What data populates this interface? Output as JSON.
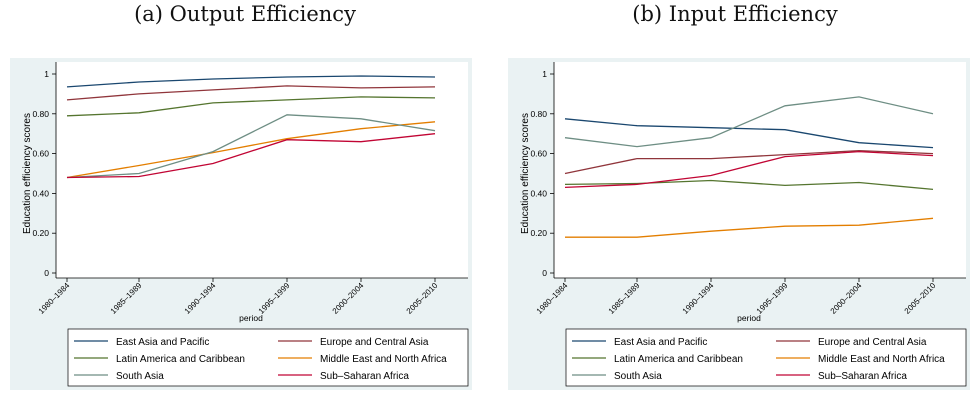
{
  "captions": {
    "a": "(a) Output Efficiency",
    "b": "(b) Input Efficiency"
  },
  "colors": {
    "background_outer": "#eaf2f3",
    "plot_background": "#ffffff"
  },
  "legend_labels": [
    "East Asia and Pacific",
    "Europe and Central Asia",
    "Latin America and Caribbean",
    "Middle East and North Africa",
    "South Asia",
    "Sub–Saharan Africa"
  ],
  "chart_data": [
    {
      "type": "line",
      "caption": "(a) Output Efficiency",
      "xlabel": "period",
      "ylabel": "Education  efficiency scores",
      "categories": [
        "1980–1984",
        "1985–1989",
        "1990–1994",
        "1995–1999",
        "2000–2004",
        "2005–2010"
      ],
      "ylim": [
        0,
        1
      ],
      "yticks": [
        "0",
        "0.20",
        "0.40",
        "0.60",
        "0.80",
        "1"
      ],
      "grid": false,
      "legend_position": "bottom",
      "series": [
        {
          "name": "East Asia and Pacific",
          "color": "#1a476f",
          "values": [
            0.935,
            0.96,
            0.975,
            0.985,
            0.99,
            0.985
          ]
        },
        {
          "name": "Europe and Central Asia",
          "color": "#90353b",
          "values": [
            0.87,
            0.9,
            0.92,
            0.94,
            0.93,
            0.935
          ]
        },
        {
          "name": "Latin America and Caribbean",
          "color": "#55752f",
          "values": [
            0.79,
            0.805,
            0.855,
            0.87,
            0.885,
            0.88
          ]
        },
        {
          "name": "Middle East and North Africa",
          "color": "#e37e00",
          "values": [
            0.48,
            0.54,
            0.605,
            0.675,
            0.725,
            0.76
          ]
        },
        {
          "name": "South Asia",
          "color": "#6e8e84",
          "values": [
            0.48,
            0.5,
            0.61,
            0.795,
            0.775,
            0.715
          ]
        },
        {
          "name": "Sub–Saharan Africa",
          "color": "#c10534",
          "values": [
            0.48,
            0.485,
            0.55,
            0.67,
            0.66,
            0.7
          ]
        }
      ]
    },
    {
      "type": "line",
      "caption": "(b) Input Efficiency",
      "xlabel": "period",
      "ylabel": "Education  efficiency scores",
      "categories": [
        "1980–1984",
        "1985–1989",
        "1990–1994",
        "1995–1999",
        "2000–2004",
        "2005–2010"
      ],
      "ylim": [
        0,
        1
      ],
      "yticks": [
        "0",
        "0.20",
        "0.40",
        "0.60",
        "0.80",
        "1"
      ],
      "grid": false,
      "legend_position": "bottom",
      "series": [
        {
          "name": "East Asia and Pacific",
          "color": "#1a476f",
          "values": [
            0.775,
            0.74,
            0.73,
            0.72,
            0.655,
            0.63
          ]
        },
        {
          "name": "Europe and Central Asia",
          "color": "#90353b",
          "values": [
            0.5,
            0.575,
            0.575,
            0.595,
            0.615,
            0.6
          ]
        },
        {
          "name": "Latin America and Caribbean",
          "color": "#55752f",
          "values": [
            0.445,
            0.45,
            0.465,
            0.44,
            0.455,
            0.42
          ]
        },
        {
          "name": "Middle East and North Africa",
          "color": "#e37e00",
          "values": [
            0.18,
            0.18,
            0.21,
            0.235,
            0.24,
            0.275
          ]
        },
        {
          "name": "South Asia",
          "color": "#6e8e84",
          "values": [
            0.68,
            0.635,
            0.68,
            0.84,
            0.885,
            0.8
          ]
        },
        {
          "name": "Sub–Saharan Africa",
          "color": "#c10534",
          "values": [
            0.43,
            0.445,
            0.49,
            0.585,
            0.61,
            0.59
          ]
        }
      ]
    }
  ]
}
